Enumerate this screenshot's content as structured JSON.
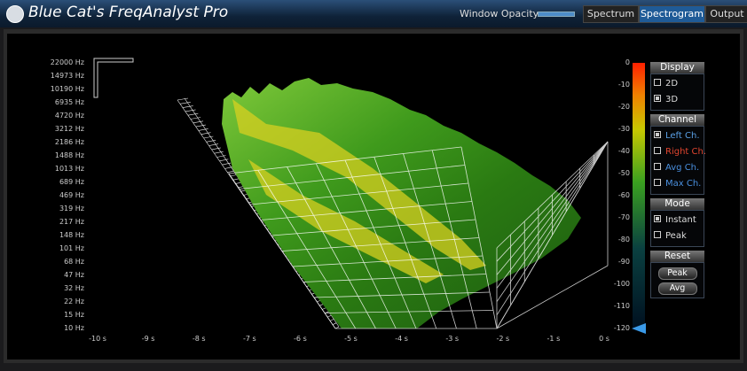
{
  "header": {
    "title": "Blue Cat's FreqAnalyst Pro",
    "opacity_label": "Window Opacity:"
  },
  "tabs": [
    {
      "label": "Spectrum",
      "selected": false
    },
    {
      "label": "Spectrogram",
      "selected": true
    },
    {
      "label": "Output",
      "selected": false
    }
  ],
  "frequency_labels": [
    "22000 Hz",
    "14973 Hz",
    "10190 Hz",
    "6935 Hz",
    "4720 Hz",
    "3212 Hz",
    "2186 Hz",
    "1488 Hz",
    "1013 Hz",
    "689 Hz",
    "469 Hz",
    "319 Hz",
    "217 Hz",
    "148 Hz",
    "101 Hz",
    "68 Hz",
    "47 Hz",
    "32 Hz",
    "22 Hz",
    "15 Hz",
    "10 Hz"
  ],
  "time_labels": [
    "-10 s",
    "-9 s",
    "-8 s",
    "-7 s",
    "-6 s",
    "-5 s",
    "-4 s",
    "-3 s",
    "-2 s",
    "-1 s",
    "0 s"
  ],
  "db_labels": [
    "0",
    "-10",
    "-20",
    "-30",
    "-40",
    "-50",
    "-60",
    "-70",
    "-80",
    "-90",
    "-100",
    "-110",
    "-120"
  ],
  "panel": {
    "sections": [
      {
        "title": "Display",
        "items": [
          {
            "label": "2D",
            "checked": false
          },
          {
            "label": "3D",
            "checked": true
          }
        ]
      },
      {
        "title": "Channel",
        "items": [
          {
            "label": "Left Ch.",
            "checked": true,
            "color": "#5aa0e6"
          },
          {
            "label": "Right Ch.",
            "checked": false,
            "color": "#e0452f"
          },
          {
            "label": "Avg Ch.",
            "checked": false,
            "color": "#4a90e0"
          },
          {
            "label": "Max Ch.",
            "checked": false,
            "color": "#4a90e0"
          }
        ]
      },
      {
        "title": "Mode",
        "items": [
          {
            "label": "Instant",
            "checked": true
          },
          {
            "label": "Peak",
            "checked": false
          }
        ]
      },
      {
        "title": "Reset",
        "buttons": [
          "Peak",
          "Avg"
        ]
      }
    ]
  }
}
